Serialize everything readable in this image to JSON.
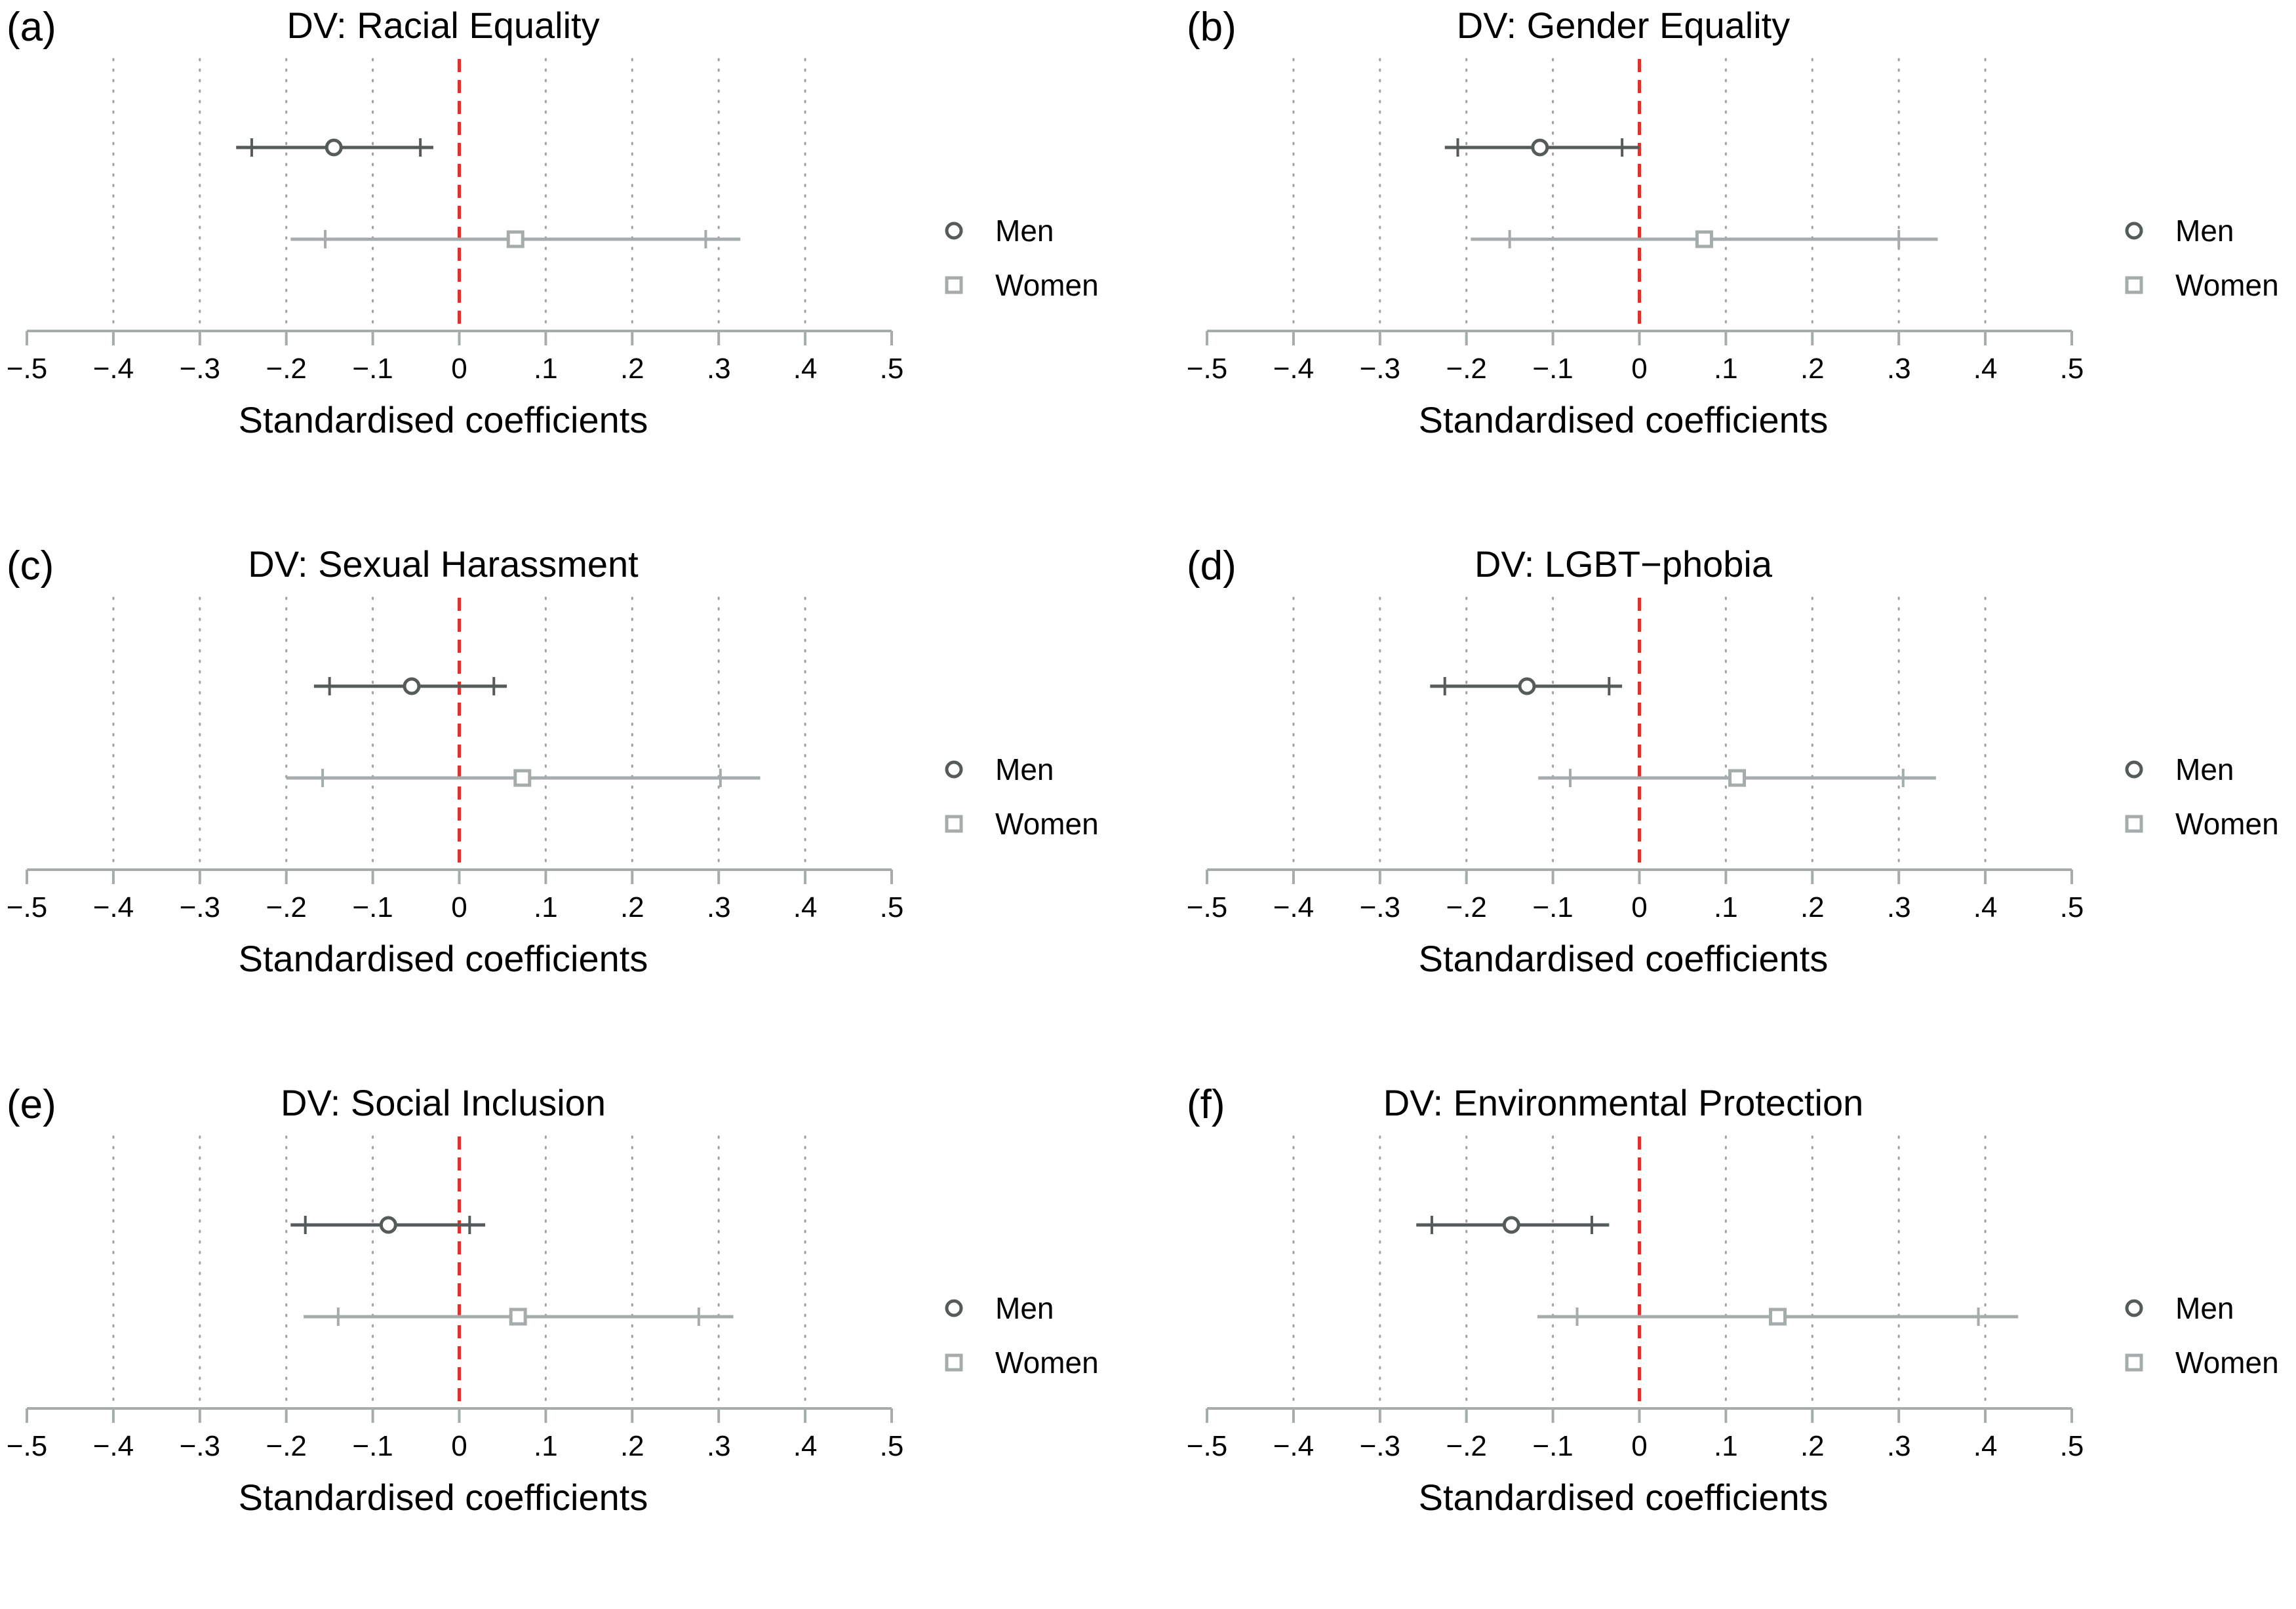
{
  "figure": {
    "colors": {
      "men": "#555b5b",
      "women": "#a6acac",
      "zero_line": "#e0322c",
      "grid": "#a0a0a0",
      "axis": "#a6acac"
    }
  },
  "chart_data": [
    {
      "type": "forest",
      "panel_label": "(a)",
      "title": "DV: Racial Equality",
      "xlabel": "Standardised coefficients",
      "xlim": [
        -0.5,
        0.5
      ],
      "xticks": [
        -0.5,
        -0.4,
        -0.3,
        -0.2,
        -0.1,
        0,
        0.1,
        0.2,
        0.3,
        0.4,
        0.5
      ],
      "xtick_labels": [
        "−.5",
        "−.4",
        "−.3",
        "−.2",
        "−.1",
        "0",
        ".1",
        ".2",
        ".3",
        ".4",
        ".5"
      ],
      "reference_line": 0,
      "legend": [
        "Men",
        "Women"
      ],
      "legend_position": "right",
      "series": [
        {
          "name": "Men",
          "marker": "circle",
          "estimate": -0.145,
          "ci90": [
            -0.24,
            -0.045
          ],
          "ci95": [
            -0.258,
            -0.03
          ]
        },
        {
          "name": "Women",
          "marker": "square",
          "estimate": 0.065,
          "ci90": [
            -0.155,
            0.285
          ],
          "ci95": [
            -0.195,
            0.325
          ]
        }
      ]
    },
    {
      "type": "forest",
      "panel_label": "(b)",
      "title": "DV: Gender Equality",
      "xlabel": "Standardised coefficients",
      "xlim": [
        -0.5,
        0.5
      ],
      "xticks": [
        -0.5,
        -0.4,
        -0.3,
        -0.2,
        -0.1,
        0,
        0.1,
        0.2,
        0.3,
        0.4,
        0.5
      ],
      "xtick_labels": [
        "−.5",
        "−.4",
        "−.3",
        "−.2",
        "−.1",
        "0",
        ".1",
        ".2",
        ".3",
        ".4",
        ".5"
      ],
      "reference_line": 0,
      "legend": [
        "Men",
        "Women"
      ],
      "legend_position": "right",
      "series": [
        {
          "name": "Men",
          "marker": "circle",
          "estimate": -0.115,
          "ci90": [
            -0.21,
            -0.02
          ],
          "ci95": [
            -0.225,
            0.0
          ]
        },
        {
          "name": "Women",
          "marker": "square",
          "estimate": 0.075,
          "ci90": [
            -0.15,
            0.3
          ],
          "ci95": [
            -0.195,
            0.345
          ]
        }
      ]
    },
    {
      "type": "forest",
      "panel_label": "(c)",
      "title": "DV: Sexual Harassment",
      "xlabel": "Standardised coefficients",
      "xlim": [
        -0.5,
        0.5
      ],
      "xticks": [
        -0.5,
        -0.4,
        -0.3,
        -0.2,
        -0.1,
        0,
        0.1,
        0.2,
        0.3,
        0.4,
        0.5
      ],
      "xtick_labels": [
        "−.5",
        "−.4",
        "−.3",
        "−.2",
        "−.1",
        "0",
        ".1",
        ".2",
        ".3",
        ".4",
        ".5"
      ],
      "reference_line": 0,
      "legend": [
        "Men",
        "Women"
      ],
      "legend_position": "right",
      "series": [
        {
          "name": "Men",
          "marker": "circle",
          "estimate": -0.055,
          "ci90": [
            -0.15,
            0.04
          ],
          "ci95": [
            -0.168,
            0.055
          ]
        },
        {
          "name": "Women",
          "marker": "square",
          "estimate": 0.073,
          "ci90": [
            -0.158,
            0.302
          ],
          "ci95": [
            -0.2,
            0.348
          ]
        }
      ]
    },
    {
      "type": "forest",
      "panel_label": "(d)",
      "title": "DV: LGBT−phobia",
      "xlabel": "Standardised coefficients",
      "xlim": [
        -0.5,
        0.5
      ],
      "xticks": [
        -0.5,
        -0.4,
        -0.3,
        -0.2,
        -0.1,
        0,
        0.1,
        0.2,
        0.3,
        0.4,
        0.5
      ],
      "xtick_labels": [
        "−.5",
        "−.4",
        "−.3",
        "−.2",
        "−.1",
        "0",
        ".1",
        ".2",
        ".3",
        ".4",
        ".5"
      ],
      "reference_line": 0,
      "legend": [
        "Men",
        "Women"
      ],
      "legend_position": "right",
      "series": [
        {
          "name": "Men",
          "marker": "circle",
          "estimate": -0.13,
          "ci90": [
            -0.225,
            -0.035
          ],
          "ci95": [
            -0.242,
            -0.02
          ]
        },
        {
          "name": "Women",
          "marker": "square",
          "estimate": 0.113,
          "ci90": [
            -0.08,
            0.305
          ],
          "ci95": [
            -0.117,
            0.343
          ]
        }
      ]
    },
    {
      "type": "forest",
      "panel_label": "(e)",
      "title": "DV: Social Inclusion",
      "xlabel": "Standardised coefficients",
      "xlim": [
        -0.5,
        0.5
      ],
      "xticks": [
        -0.5,
        -0.4,
        -0.3,
        -0.2,
        -0.1,
        0,
        0.1,
        0.2,
        0.3,
        0.4,
        0.5
      ],
      "xtick_labels": [
        "−.5",
        "−.4",
        "−.3",
        "−.2",
        "−.1",
        "0",
        ".1",
        ".2",
        ".3",
        ".4",
        ".5"
      ],
      "reference_line": 0,
      "legend": [
        "Men",
        "Women"
      ],
      "legend_position": "right",
      "series": [
        {
          "name": "Men",
          "marker": "circle",
          "estimate": -0.082,
          "ci90": [
            -0.178,
            0.012
          ],
          "ci95": [
            -0.195,
            0.03
          ]
        },
        {
          "name": "Women",
          "marker": "square",
          "estimate": 0.068,
          "ci90": [
            -0.14,
            0.277
          ],
          "ci95": [
            -0.18,
            0.317
          ]
        }
      ]
    },
    {
      "type": "forest",
      "panel_label": "(f)",
      "title": "DV: Environmental Protection",
      "xlabel": "Standardised coefficients",
      "xlim": [
        -0.5,
        0.5
      ],
      "xticks": [
        -0.5,
        -0.4,
        -0.3,
        -0.2,
        -0.1,
        0,
        0.1,
        0.2,
        0.3,
        0.4,
        0.5
      ],
      "xtick_labels": [
        "−.5",
        "−.4",
        "−.3",
        "−.2",
        "−.1",
        "0",
        ".1",
        ".2",
        ".3",
        ".4",
        ".5"
      ],
      "reference_line": 0,
      "legend": [
        "Men",
        "Women"
      ],
      "legend_position": "right",
      "series": [
        {
          "name": "Men",
          "marker": "circle",
          "estimate": -0.148,
          "ci90": [
            -0.24,
            -0.055
          ],
          "ci95": [
            -0.258,
            -0.035
          ]
        },
        {
          "name": "Women",
          "marker": "square",
          "estimate": 0.16,
          "ci90": [
            -0.072,
            0.392
          ],
          "ci95": [
            -0.118,
            0.438
          ]
        }
      ]
    }
  ]
}
